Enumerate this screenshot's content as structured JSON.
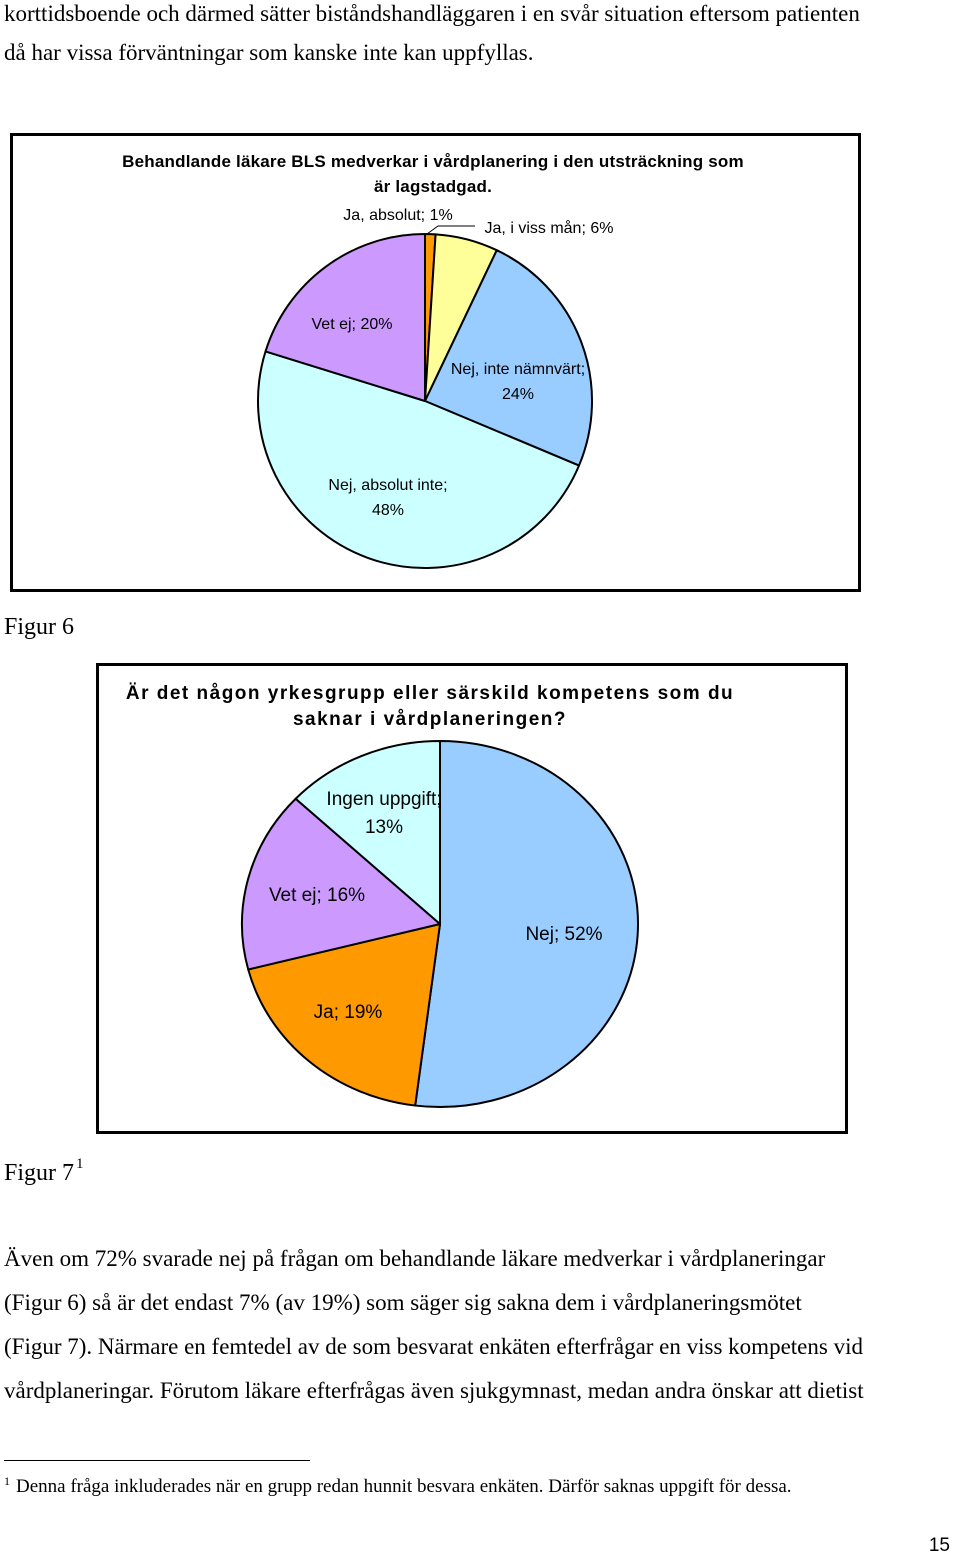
{
  "top_text": {
    "line1": "korttidsboende och därmed sätter biståndshandläggaren i en svår situation eftersom patienten",
    "line2": "då har vissa förväntningar som kanske inte kan uppfyllas."
  },
  "figure6": {
    "caption": "Figur 6"
  },
  "figure7": {
    "caption": "Figur 7",
    "caption_footnote_ref": "1"
  },
  "chart_data": [
    {
      "type": "pie",
      "title_lines": [
        "Behandlande läkare BLS medverkar i vårdplanering i den utsträckning som",
        "är lagstadgad."
      ],
      "start_angle_deg": 0,
      "direction": "clockwise",
      "slices": [
        {
          "name": "Ja, absolut",
          "value": 1,
          "color": "#FF9900",
          "label_lines": [
            "Ja, absolut; 1%"
          ]
        },
        {
          "name": "Ja, i viss mån",
          "value": 6,
          "color": "#FFFF99",
          "label_lines": [
            "Ja, i viss mån; 6%"
          ]
        },
        {
          "name": "Nej, inte nämnvärt",
          "value": 24,
          "color": "#99CCFF",
          "label_lines": [
            "Nej, inte nämnvärt;",
            "24%"
          ]
        },
        {
          "name": "Nej, absolut inte",
          "value": 48,
          "color": "#CCFFFF",
          "label_lines": [
            "Nej, absolut inte;",
            "48%"
          ]
        },
        {
          "name": "Vet ej",
          "value": 20,
          "color": "#CC99FF",
          "label_lines": [
            "Vet ej; 20%"
          ]
        }
      ]
    },
    {
      "type": "pie",
      "title_lines": [
        "Är det någon yrkesgrupp eller särskild kompetens som du",
        "saknar i vårdplaneringen?"
      ],
      "start_angle_deg": 0,
      "direction": "clockwise",
      "slices": [
        {
          "name": "Nej",
          "value": 52,
          "color": "#99CCFF",
          "label_lines": [
            "Nej; 52%"
          ]
        },
        {
          "name": "Ja",
          "value": 19,
          "color": "#FF9900",
          "label_lines": [
            "Ja; 19%"
          ]
        },
        {
          "name": "Vet ej",
          "value": 16,
          "color": "#CC99FF",
          "label_lines": [
            "Vet ej; 16%"
          ]
        },
        {
          "name": "Ingen uppgift",
          "value": 13,
          "color": "#CCFFFF",
          "label_lines": [
            "Ingen uppgift;",
            "13%"
          ]
        }
      ]
    }
  ],
  "body_text": {
    "line1": "Även om 72% svarade nej på frågan om behandlande läkare medverkar i vårdplaneringar",
    "line2": "(Figur 6)  så är det endast 7% (av 19%) som säger sig sakna dem i vårdplaneringsmötet",
    "line3": "(Figur 7). Närmare en femtedel av de som besvarat enkäten efterfrågar en viss kompetens vid",
    "line4": "vårdplaneringar. Förutom läkare efterfrågas även sjukgymnast, medan andra önskar att dietist"
  },
  "footnote": {
    "marker": "1",
    "text": "Denna fråga inkluderades när en grupp redan hunnit besvara enkäten. Därför saknas uppgift för dessa."
  },
  "page_number": "15"
}
